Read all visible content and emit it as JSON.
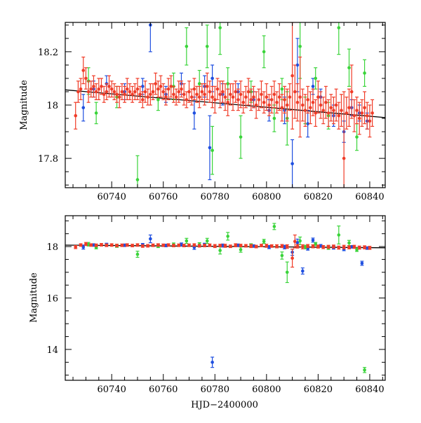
{
  "chart_data": [
    {
      "type": "scatter",
      "panel": "top",
      "xlabel": "",
      "ylabel": "Magnitude",
      "xlim": [
        60722,
        60846
      ],
      "ylim": [
        18.31,
        17.69
      ],
      "y_inverted": true,
      "x_ticks": [
        60740,
        60760,
        60780,
        60800,
        60820,
        60840
      ],
      "x_tick_labels": [
        "60740",
        "60760",
        "60780",
        "60800",
        "60820",
        "60840"
      ],
      "y_ticks": [
        17.8,
        18,
        18.2
      ],
      "y_tick_labels": [
        "17.8",
        "18",
        "18.2"
      ],
      "trend_line": {
        "x": [
          60722,
          60846
        ],
        "y": [
          18.057,
          17.953
        ],
        "color": "#000000"
      },
      "series": [
        {
          "color": "#1f4fe0",
          "x": [
            60729,
            60733,
            60738,
            60745,
            60752,
            60755,
            60761,
            60767,
            60772,
            60776,
            60778,
            60779,
            60783,
            60789,
            60795,
            60801,
            60807,
            60810,
            60812,
            60816,
            60818,
            60821,
            60826,
            60830,
            60833,
            60836,
            60839
          ],
          "y": [
            17.99,
            18.06,
            18.08,
            18.05,
            18.07,
            18.3,
            18.04,
            18.08,
            17.97,
            18.07,
            17.84,
            18.1,
            18.04,
            18.05,
            18.02,
            17.98,
            17.98,
            17.78,
            18.15,
            17.93,
            18.07,
            18.03,
            17.96,
            17.9,
            17.99,
            17.97,
            17.94
          ],
          "yerr": [
            0.05,
            0.03,
            0.03,
            0.03,
            0.03,
            0.1,
            0.03,
            0.04,
            0.06,
            0.04,
            0.12,
            0.05,
            0.04,
            0.03,
            0.03,
            0.04,
            0.05,
            0.09,
            0.1,
            0.05,
            0.03,
            0.03,
            0.04,
            0.04,
            0.03,
            0.03,
            0.03
          ]
        },
        {
          "color": "#3ad43a",
          "x": [
            60731,
            60734,
            60742,
            60750,
            60758,
            60764,
            60769,
            60774,
            60777,
            60779,
            60782,
            60785,
            60790,
            60794,
            60799,
            60803,
            60806,
            60808,
            60813,
            60815,
            60819,
            60824,
            60828,
            60832,
            60835,
            60838
          ],
          "y": [
            18.09,
            17.97,
            18.03,
            17.72,
            18.02,
            18.07,
            18.22,
            18.08,
            18.22,
            17.83,
            18.29,
            18.08,
            17.88,
            18.05,
            18.2,
            17.95,
            18.06,
            17.95,
            18.22,
            17.98,
            18.1,
            17.96,
            18.29,
            18.14,
            17.88,
            18.12
          ],
          "yerr": [
            0.05,
            0.04,
            0.04,
            0.09,
            0.04,
            0.05,
            0.07,
            0.05,
            0.08,
            0.09,
            0.1,
            0.06,
            0.08,
            0.04,
            0.06,
            0.05,
            0.04,
            0.1,
            0.12,
            0.05,
            0.04,
            0.05,
            0.1,
            0.07,
            0.05,
            0.05
          ]
        },
        {
          "color": "#f03c28",
          "x": [
            60726,
            60727,
            60728,
            60729,
            60730,
            60731,
            60732,
            60733,
            60734,
            60735,
            60736,
            60737,
            60738,
            60739,
            60740,
            60741,
            60742,
            60743,
            60744,
            60745,
            60746,
            60747,
            60748,
            60749,
            60750,
            60751,
            60752,
            60753,
            60754,
            60755,
            60756,
            60757,
            60758,
            60759,
            60760,
            60761,
            60762,
            60763,
            60764,
            60765,
            60766,
            60767,
            60768,
            60769,
            60770,
            60771,
            60772,
            60773,
            60774,
            60775,
            60776,
            60777,
            60778,
            60779,
            60780,
            60781,
            60782,
            60783,
            60784,
            60785,
            60786,
            60787,
            60788,
            60789,
            60790,
            60791,
            60792,
            60793,
            60794,
            60795,
            60796,
            60797,
            60798,
            60799,
            60800,
            60801,
            60802,
            60803,
            60804,
            60805,
            60806,
            60807,
            60808,
            60809,
            60810,
            60811,
            60812,
            60813,
            60814,
            60815,
            60816,
            60817,
            60818,
            60819,
            60820,
            60821,
            60822,
            60823,
            60824,
            60825,
            60826,
            60827,
            60828,
            60829,
            60830,
            60831,
            60832,
            60833,
            60834,
            60835,
            60836,
            60837,
            60838,
            60839,
            60840,
            60841
          ],
          "y": [
            17.96,
            18.05,
            18.06,
            18.13,
            18.1,
            18.05,
            18.06,
            18.07,
            18.05,
            18.06,
            18.07,
            18.04,
            18.05,
            18.07,
            18.06,
            18.05,
            18.04,
            18.03,
            18.05,
            18.04,
            18.06,
            18.05,
            18.04,
            18.05,
            18.06,
            18.04,
            18.02,
            18.05,
            18.03,
            18.04,
            18.05,
            18.08,
            18.06,
            18.07,
            18.05,
            18.03,
            18.06,
            18.07,
            18.04,
            18.03,
            18.05,
            18.06,
            18.04,
            18.02,
            18.05,
            18.03,
            18.06,
            18.04,
            18.03,
            18.05,
            18.04,
            18.07,
            18.05,
            18.03,
            18.02,
            18.06,
            18.04,
            18.05,
            18.03,
            18.01,
            18.04,
            18.03,
            18.05,
            18.02,
            18.04,
            18.01,
            18.03,
            18.05,
            18.02,
            18.03,
            18.0,
            18.02,
            18.04,
            18.01,
            18.03,
            18.0,
            18.02,
            18.04,
            18.01,
            18.03,
            17.99,
            18.02,
            18.0,
            18.03,
            18.11,
            18.05,
            18.01,
            18.03,
            18.0,
            17.98,
            18.02,
            17.99,
            18.01,
            17.97,
            18.03,
            18.0,
            17.98,
            18.01,
            17.97,
            17.99,
            17.98,
            18.0,
            17.96,
            17.98,
            17.8,
            17.97,
            17.99,
            18.05,
            17.96,
            17.98,
            17.95,
            17.97,
            17.99,
            17.96,
            17.94,
            17.97
          ],
          "yerr": [
            0.05,
            0.04,
            0.04,
            0.05,
            0.04,
            0.04,
            0.03,
            0.04,
            0.03,
            0.04,
            0.03,
            0.03,
            0.03,
            0.04,
            0.03,
            0.03,
            0.03,
            0.04,
            0.03,
            0.03,
            0.04,
            0.03,
            0.03,
            0.03,
            0.04,
            0.03,
            0.03,
            0.04,
            0.03,
            0.04,
            0.03,
            0.04,
            0.03,
            0.04,
            0.03,
            0.03,
            0.04,
            0.04,
            0.03,
            0.03,
            0.04,
            0.03,
            0.04,
            0.03,
            0.04,
            0.03,
            0.04,
            0.03,
            0.04,
            0.03,
            0.04,
            0.05,
            0.04,
            0.04,
            0.05,
            0.04,
            0.05,
            0.04,
            0.05,
            0.05,
            0.04,
            0.05,
            0.04,
            0.04,
            0.05,
            0.04,
            0.04,
            0.05,
            0.04,
            0.04,
            0.05,
            0.04,
            0.05,
            0.04,
            0.05,
            0.04,
            0.05,
            0.05,
            0.04,
            0.05,
            0.05,
            0.05,
            0.06,
            0.05,
            0.2,
            0.1,
            0.07,
            0.15,
            0.06,
            0.06,
            0.05,
            0.06,
            0.05,
            0.05,
            0.06,
            0.05,
            0.05,
            0.06,
            0.05,
            0.05,
            0.05,
            0.06,
            0.05,
            0.06,
            0.25,
            0.06,
            0.07,
            0.1,
            0.06,
            0.05,
            0.06,
            0.05,
            0.06,
            0.05,
            0.06,
            0.05
          ]
        }
      ]
    },
    {
      "type": "scatter",
      "panel": "bottom",
      "xlabel": "HJD−2400000",
      "ylabel": "Magnitude",
      "xlim": [
        60722,
        60846
      ],
      "ylim": [
        19.2,
        12.8
      ],
      "y_inverted": true,
      "x_ticks": [
        60740,
        60760,
        60780,
        60800,
        60820,
        60840
      ],
      "x_tick_labels": [
        "60740",
        "60760",
        "60780",
        "60800",
        "60820",
        "60840"
      ],
      "y_ticks": [
        14,
        16,
        18
      ],
      "y_tick_labels": [
        "14",
        "16",
        "18"
      ],
      "trend_line": {
        "x": [
          60722,
          60846
        ],
        "y": [
          18.057,
          17.953
        ],
        "color": "#000000"
      },
      "series": [
        {
          "color": "#1f4fe0",
          "x": [
            60729,
            60733,
            60738,
            60745,
            60752,
            60755,
            60761,
            60767,
            60772,
            60776,
            60779,
            60783,
            60789,
            60795,
            60801,
            60807,
            60810,
            60812,
            60814,
            60816,
            60818,
            60821,
            60826,
            60830,
            60833,
            60837,
            60839
          ],
          "y": [
            17.98,
            18.06,
            18.08,
            18.05,
            18.07,
            18.3,
            18.04,
            18.08,
            17.97,
            18.07,
            13.5,
            18.04,
            18.05,
            18.02,
            17.98,
            17.98,
            17.78,
            18.15,
            17.05,
            17.93,
            18.25,
            18.03,
            17.96,
            17.9,
            17.99,
            17.35,
            17.94
          ],
          "yerr": [
            0.08,
            0.05,
            0.05,
            0.05,
            0.05,
            0.15,
            0.05,
            0.06,
            0.08,
            0.06,
            0.2,
            0.06,
            0.05,
            0.05,
            0.06,
            0.07,
            0.12,
            0.14,
            0.12,
            0.07,
            0.08,
            0.05,
            0.06,
            0.06,
            0.05,
            0.08,
            0.05
          ]
        },
        {
          "color": "#3ad43a",
          "x": [
            60731,
            60734,
            60742,
            60750,
            60758,
            60764,
            60769,
            60774,
            60777,
            60782,
            60785,
            60790,
            60794,
            60799,
            60803,
            60806,
            60808,
            60813,
            60815,
            60819,
            60824,
            60828,
            60832,
            60835,
            60838
          ],
          "y": [
            18.09,
            17.97,
            18.03,
            17.7,
            18.02,
            18.07,
            18.22,
            18.08,
            18.22,
            17.85,
            18.4,
            17.88,
            18.05,
            18.2,
            18.78,
            17.65,
            17.0,
            18.22,
            17.98,
            18.1,
            17.96,
            18.45,
            18.14,
            17.88,
            13.2
          ],
          "yerr": [
            0.07,
            0.06,
            0.06,
            0.12,
            0.06,
            0.07,
            0.1,
            0.07,
            0.1,
            0.14,
            0.15,
            0.1,
            0.06,
            0.08,
            0.12,
            0.14,
            0.4,
            0.15,
            0.07,
            0.06,
            0.07,
            0.35,
            0.1,
            0.07,
            0.1
          ]
        },
        {
          "color": "#f03c28",
          "x": [
            60726,
            60728,
            60730,
            60732,
            60734,
            60736,
            60738,
            60740,
            60742,
            60744,
            60746,
            60748,
            60750,
            60752,
            60754,
            60756,
            60758,
            60760,
            60762,
            60764,
            60766,
            60768,
            60770,
            60772,
            60774,
            60776,
            60778,
            60780,
            60782,
            60784,
            60786,
            60788,
            60790,
            60792,
            60794,
            60796,
            60798,
            60800,
            60802,
            60804,
            60806,
            60808,
            60810,
            60811,
            60812,
            60814,
            60816,
            60818,
            60820,
            60822,
            60824,
            60826,
            60828,
            60830,
            60832,
            60834,
            60836,
            60838,
            60840
          ],
          "y": [
            17.98,
            18.06,
            18.1,
            18.06,
            18.05,
            18.07,
            18.05,
            18.06,
            18.04,
            18.05,
            18.06,
            18.04,
            18.06,
            18.02,
            18.03,
            18.05,
            18.06,
            18.05,
            18.06,
            18.04,
            18.05,
            18.04,
            18.05,
            18.06,
            18.03,
            18.04,
            18.05,
            18.02,
            18.04,
            18.03,
            18.01,
            18.05,
            18.04,
            18.03,
            18.02,
            18.0,
            18.04,
            18.03,
            18.02,
            18.01,
            18.02,
            18.0,
            17.55,
            18.2,
            18.01,
            17.99,
            18.02,
            18.01,
            18.0,
            17.98,
            17.99,
            18.0,
            17.96,
            17.98,
            17.97,
            17.99,
            17.96,
            17.97,
            17.95
          ],
          "yerr": [
            0.06,
            0.05,
            0.06,
            0.05,
            0.05,
            0.05,
            0.05,
            0.05,
            0.05,
            0.05,
            0.05,
            0.05,
            0.05,
            0.05,
            0.05,
            0.05,
            0.05,
            0.05,
            0.05,
            0.05,
            0.05,
            0.05,
            0.05,
            0.05,
            0.05,
            0.05,
            0.05,
            0.06,
            0.05,
            0.06,
            0.05,
            0.06,
            0.05,
            0.05,
            0.06,
            0.05,
            0.05,
            0.06,
            0.05,
            0.06,
            0.06,
            0.07,
            0.35,
            0.25,
            0.07,
            0.08,
            0.06,
            0.06,
            0.06,
            0.06,
            0.06,
            0.06,
            0.06,
            0.07,
            0.06,
            0.06,
            0.06,
            0.06,
            0.06
          ]
        }
      ]
    }
  ]
}
